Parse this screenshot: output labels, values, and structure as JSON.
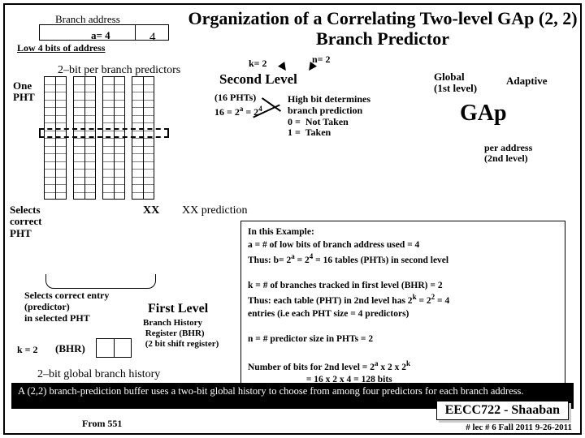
{
  "title": "Organization of a Correlating Two-level GAp (2, 2) Branch Predictor",
  "a_label": "a= 4",
  "low4": "Low 4 bits of address",
  "branch_addr": "Branch address",
  "four": "4",
  "two_bit": "2–bit per branch predictors",
  "one_pht": "One\nPHT",
  "selects_pht": "Selects\ncorrect\nPHT",
  "xx_label": "XX",
  "xx_pred": "XX prediction",
  "k2": "k= 2",
  "n2": "n= 2",
  "second_level": "Second Level",
  "phts16": "(16 PHTs)",
  "phtsformula_html": "16 = 2<span class='sup'>a</span> = 2<span class='sup'>4</span>",
  "highbit": "High bit determines\nbranch prediction\n0 =  Not Taken\n1 =  Taken",
  "global": "Global\n(1st level)",
  "adaptive": "Adaptive",
  "gap": "GAp",
  "peraddr": "per address\n(2nd level)",
  "example_html": "In this Example:<br>a = # of low bits of branch address used  = 4<br>Thus: b= 2<span class='sup'>a</span>  =  2<span class='sup'>4</span> = 16   tables (PHTs) in second level<br><br>k  = # of  branches tracked  in first  level (BHR)  = 2<br>Thus: each table (PHT) in 2nd level  has  2<span class='sup'>k</span>  = 2<span class='sup'>2</span> = 4<br>entries  (i.e each PHT size  = 4 predictors)<br><br>n =  #  predictor size in PHTs = 2<br><br>Number of bits for 2nd level = 2<span class='sup'>a</span> x 2  x 2<span class='sup'>k</span><br>&nbsp;&nbsp;&nbsp;&nbsp;&nbsp;&nbsp;&nbsp;&nbsp;&nbsp;&nbsp;&nbsp;&nbsp;&nbsp;&nbsp;&nbsp;&nbsp;&nbsp;&nbsp;&nbsp;&nbsp;&nbsp;&nbsp;&nbsp;&nbsp;&nbsp;=  16 x  2 x  4 = 128 bits",
  "first_level": "First Level",
  "selects_entry": "Selects correct entry\n(predictor)\nin selected PHT",
  "bhr_lines": "Branch History\n Register (BHR)\n (2 bit shift register)",
  "k2b": "k = 2",
  "bhr": "(BHR)",
  "global_hist": "2–bit global branch history",
  "black_bar": "A (2,2) branch-prediction buffer uses a two-bit global history to choose from among four predictors for each branch address.",
  "eecc": "EECC722 - Shaaban",
  "footer": "#   lec # 6   Fall 2011   9-26-2011",
  "from551": "From 551"
}
